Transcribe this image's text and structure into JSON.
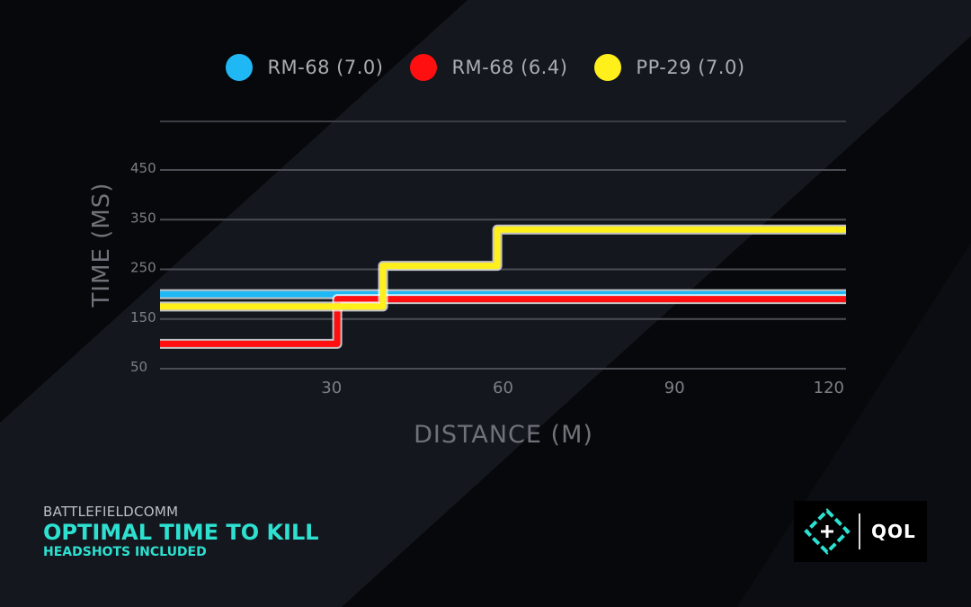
{
  "colors": {
    "accent": "#2de0d0",
    "series": [
      "#1fb8f5",
      "#ff0f0f",
      "#fff01c"
    ],
    "grid": "#4a4d53",
    "tick": "#7c7f86"
  },
  "legend": [
    {
      "label": "RM-68 (7.0)"
    },
    {
      "label": "RM-68 (6.4)"
    },
    {
      "label": "PP-29 (7.0)"
    }
  ],
  "brand": {
    "source": "BATTLEFIELDCOMM",
    "title": "OPTIMAL TIME TO KILL",
    "subtitle": "HEADSHOTS INCLUDED"
  },
  "badge": {
    "text": "QOL",
    "icon": "crosshair-icon"
  },
  "chart_data": {
    "type": "line",
    "title": "",
    "xlabel": "DISTANCE (M)",
    "ylabel": "TIME (MS)",
    "xlim": [
      0,
      120
    ],
    "ylim": [
      50,
      450
    ],
    "x_ticks": [
      "30",
      "60",
      "90",
      "120"
    ],
    "y_ticks": [
      "450",
      "350",
      "250",
      "150",
      "50"
    ],
    "step": true,
    "series": [
      {
        "name": "RM-68 (7.0)",
        "x": [
          0,
          120
        ],
        "y": [
          200,
          200
        ]
      },
      {
        "name": "RM-68 (6.4)",
        "x": [
          0,
          31,
          31,
          120
        ],
        "y": [
          100,
          100,
          190,
          190
        ]
      },
      {
        "name": "PP-29 (7.0)",
        "x": [
          0,
          39,
          39,
          59,
          59,
          120
        ],
        "y": [
          175,
          175,
          257,
          257,
          330,
          330
        ]
      }
    ]
  }
}
